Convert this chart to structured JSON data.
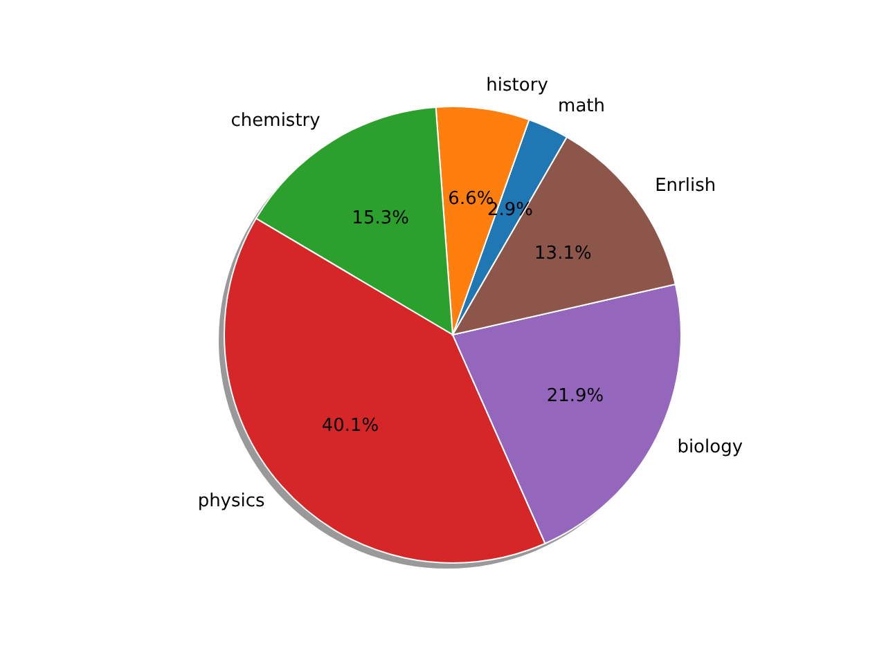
{
  "chart_data": {
    "type": "pie",
    "categories": [
      "math",
      "history",
      "chemistry",
      "physics",
      "biology",
      "Enrlish"
    ],
    "values": [
      2.9,
      6.6,
      15.3,
      40.1,
      21.9,
      13.1
    ],
    "colors": [
      "#1f77b4",
      "#ff7f0e",
      "#2ca02c",
      "#d62728",
      "#9467bd",
      "#8c564b"
    ],
    "value_labels": [
      "2.9%",
      "6.6%",
      "15.3%",
      "40.1%",
      "21.9%",
      "13.1%"
    ]
  }
}
